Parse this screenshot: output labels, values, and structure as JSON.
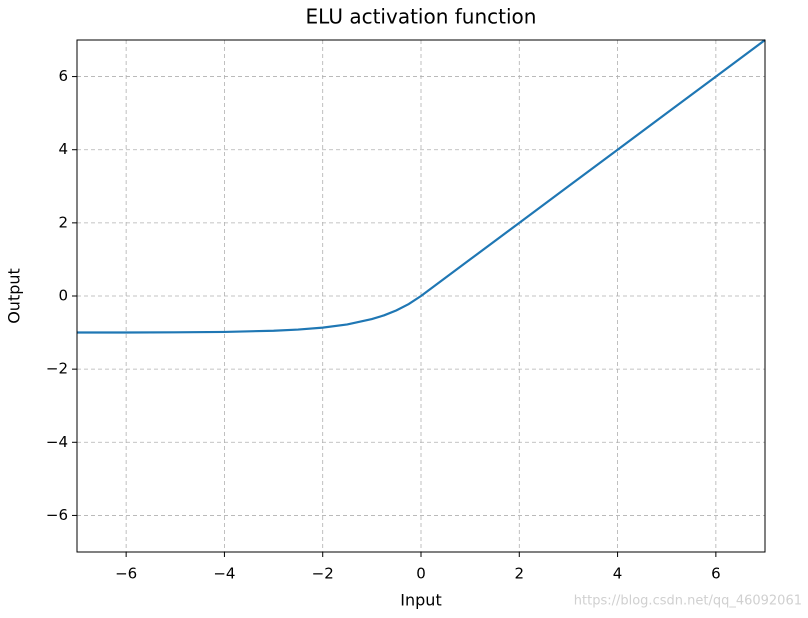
{
  "chart_data": {
    "type": "line",
    "title": "ELU activation function",
    "x_label": "Input",
    "y_label": "Output",
    "x": [
      -7,
      -6,
      -5,
      -4,
      -3,
      -2.5,
      -2,
      -1.5,
      -1,
      -0.75,
      -0.5,
      -0.25,
      0,
      1,
      2,
      3,
      4,
      5,
      6,
      7
    ],
    "values": [
      -0.999,
      -0.998,
      -0.993,
      -0.982,
      -0.95,
      -0.918,
      -0.865,
      -0.777,
      -0.632,
      -0.528,
      -0.393,
      -0.221,
      0,
      1,
      2,
      3,
      4,
      5,
      6,
      7
    ],
    "color": "#1f77b4",
    "xlim": [
      -7,
      7
    ],
    "ylim": [
      -7,
      7
    ],
    "xticks": [
      {
        "value": -6,
        "label": "−6"
      },
      {
        "value": -4,
        "label": "−4"
      },
      {
        "value": -2,
        "label": "−2"
      },
      0,
      2,
      4,
      6
    ],
    "yticks": [
      {
        "value": -6,
        "label": "−6"
      },
      {
        "value": -4,
        "label": "−4"
      },
      {
        "value": -2,
        "label": "−2"
      },
      0,
      2,
      4,
      6
    ],
    "grid": true,
    "annotation": "https://blog.csdn.net/qq_46092061"
  }
}
